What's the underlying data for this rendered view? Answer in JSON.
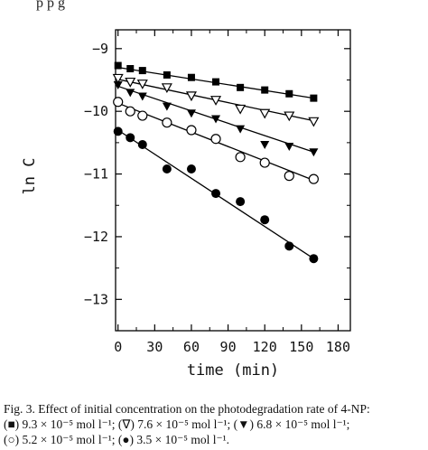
{
  "header_partial_text": "p                                  p              g",
  "chart_data": {
    "type": "scatter",
    "title": "",
    "xlabel": "time (min)",
    "ylabel": "ln C",
    "xlim": [
      -2,
      190
    ],
    "ylim": [
      -13.5,
      -8.7
    ],
    "xticks": [
      0,
      30,
      60,
      90,
      120,
      150,
      180
    ],
    "yticks": [
      -9,
      -10,
      -11,
      -12,
      -13
    ],
    "xtick_labels": [
      "0",
      "30",
      "60",
      "90",
      "120",
      "150",
      "180"
    ],
    "ytick_labels": [
      "−9",
      "−10",
      "−11",
      "−12",
      "−13"
    ],
    "grid": false,
    "legend": "none",
    "series": [
      {
        "marker": "filled-square",
        "x": [
          0,
          10,
          20,
          40,
          60,
          80,
          100,
          120,
          140,
          160
        ],
        "y": [
          -9.27,
          -9.32,
          -9.35,
          -9.42,
          -9.46,
          -9.53,
          -9.62,
          -9.66,
          -9.72,
          -9.79
        ],
        "fit": [
          [
            0,
            -9.3
          ],
          [
            160,
            -9.79
          ]
        ]
      },
      {
        "marker": "open-down-triangle",
        "x": [
          0,
          10,
          20,
          40,
          60,
          80,
          100,
          120,
          140,
          160
        ],
        "y": [
          -9.47,
          -9.53,
          -9.56,
          -9.62,
          -9.75,
          -9.82,
          -9.96,
          -10.03,
          -10.07,
          -10.16
        ],
        "fit": [
          [
            0,
            -9.49
          ],
          [
            160,
            -10.15
          ]
        ]
      },
      {
        "marker": "filled-down-triangle",
        "x": [
          0,
          10,
          20,
          40,
          60,
          80,
          100,
          120,
          140,
          160
        ],
        "y": [
          -9.58,
          -9.7,
          -9.76,
          -9.92,
          -10.03,
          -10.12,
          -10.28,
          -10.53,
          -10.56,
          -10.65
        ],
        "fit": [
          [
            0,
            -9.6
          ],
          [
            160,
            -10.65
          ]
        ]
      },
      {
        "marker": "open-circle",
        "x": [
          0,
          10,
          20,
          40,
          60,
          80,
          100,
          120,
          140,
          160
        ],
        "y": [
          -9.85,
          -10.0,
          -10.07,
          -10.18,
          -10.3,
          -10.44,
          -10.73,
          -10.82,
          -11.03,
          -11.08
        ],
        "fit": [
          [
            0,
            -9.87
          ],
          [
            160,
            -11.1
          ]
        ]
      },
      {
        "marker": "filled-circle",
        "x": [
          0,
          10,
          20,
          40,
          60,
          80,
          100,
          120,
          140,
          160
        ],
        "y": [
          -10.32,
          -10.42,
          -10.53,
          -10.92,
          -10.92,
          -11.31,
          -11.44,
          -11.73,
          -12.15,
          -12.35
        ],
        "fit": [
          [
            0,
            -10.3
          ],
          [
            160,
            -12.35
          ]
        ]
      }
    ]
  },
  "caption": {
    "line1": "Fig. 3. Effect of initial concentration on the photodegradation rate of 4-NP:",
    "line2": "(■) 9.3 × 10⁻⁵ mol l⁻¹; (∇) 7.6 × 10⁻⁵ mol l⁻¹; (▼) 6.8 × 10⁻⁵ mol l⁻¹;",
    "line3": "(○) 5.2 × 10⁻⁵ mol l⁻¹; (●) 3.5 × 10⁻⁵ mol l⁻¹."
  }
}
